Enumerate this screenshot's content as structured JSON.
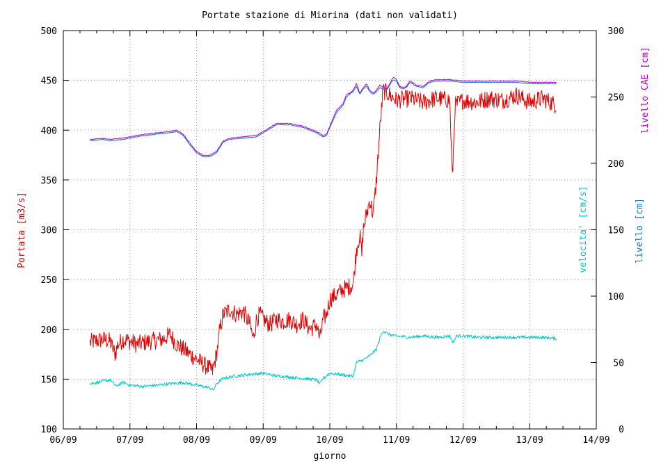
{
  "chart_data": {
    "type": "line",
    "title": "Portate stazione di Miorina (dati non validati)",
    "xlabel": "giorno",
    "x_ticks": [
      "06/09",
      "07/09",
      "08/09",
      "09/09",
      "10/09",
      "11/09",
      "12/09",
      "13/09",
      "14/09"
    ],
    "xlim": [
      0,
      8
    ],
    "left_axis": {
      "label": "Portata [m3/s]",
      "color": "#e00000",
      "ylim": [
        100,
        500
      ],
      "ticks": [
        100,
        150,
        200,
        250,
        300,
        350,
        400,
        450,
        500
      ]
    },
    "right_axis": {
      "ylim": [
        0,
        300
      ],
      "ticks": [
        0,
        50,
        100,
        150,
        200,
        250,
        300
      ],
      "labels": [
        {
          "text": "livello CAE [cm]",
          "color": "#b000d0"
        },
        {
          "text": "velocita' [cm/s]",
          "color": "#00c8c8"
        },
        {
          "text": "livello [cm]",
          "color": "#1070d0"
        }
      ]
    },
    "grid": true,
    "series": [
      {
        "axis": "left",
        "color": "#e00000",
        "noise": 9,
        "x": [
          0.4,
          0.6,
          0.7,
          0.78,
          0.82,
          0.9,
          1.0,
          1.1,
          1.3,
          1.5,
          1.6,
          1.7,
          1.8,
          1.9,
          2.0,
          2.1,
          2.2,
          2.24,
          2.3,
          2.35,
          2.4,
          2.5,
          2.6,
          2.7,
          2.8,
          2.85,
          2.9,
          2.95,
          3.0,
          3.1,
          3.2,
          3.3,
          3.4,
          3.5,
          3.6,
          3.7,
          3.8,
          3.85,
          3.9,
          3.95,
          4.0,
          4.1,
          4.2,
          4.35,
          4.4,
          4.45,
          4.48,
          4.5,
          4.6,
          4.65,
          4.7,
          4.75,
          4.8,
          4.9,
          5.0,
          5.2,
          5.4,
          5.6,
          5.8,
          5.84,
          5.88,
          6.0,
          6.2,
          6.4,
          6.6,
          6.8,
          7.0,
          7.2,
          7.4
        ],
        "y": [
          187,
          190,
          188,
          175,
          185,
          190,
          188,
          185,
          188,
          190,
          195,
          185,
          180,
          175,
          170,
          165,
          160,
          158,
          175,
          200,
          215,
          220,
          215,
          218,
          205,
          190,
          210,
          215,
          210,
          205,
          210,
          208,
          210,
          205,
          210,
          200,
          205,
          190,
          210,
          215,
          230,
          235,
          240,
          245,
          280,
          295,
          275,
          300,
          330,
          315,
          350,
          400,
          440,
          435,
          430,
          432,
          428,
          432,
          430,
          350,
          425,
          430,
          428,
          432,
          430,
          435,
          428,
          432,
          425
        ]
      },
      {
        "axis": "right",
        "color": "#00c8c8",
        "noise": 1.2,
        "x": [
          0.4,
          0.6,
          0.7,
          0.8,
          0.85,
          0.9,
          1.0,
          1.2,
          1.4,
          1.6,
          1.8,
          2.0,
          2.2,
          2.25,
          2.3,
          2.4,
          2.6,
          2.8,
          3.0,
          3.2,
          3.4,
          3.6,
          3.8,
          3.85,
          3.9,
          4.0,
          4.3,
          4.35,
          4.4,
          4.5,
          4.6,
          4.7,
          4.75,
          4.8,
          4.9,
          5.0,
          5.2,
          5.4,
          5.6,
          5.8,
          5.85,
          5.9,
          6.0,
          6.2,
          6.4,
          6.6,
          6.8,
          7.0,
          7.2,
          7.4
        ],
        "y": [
          34,
          36,
          37,
          32,
          34,
          35,
          33,
          32,
          33,
          34,
          35,
          33,
          31,
          29,
          34,
          38,
          40,
          41,
          42,
          40,
          39,
          38,
          37,
          34,
          38,
          42,
          40,
          40,
          50,
          52,
          55,
          60,
          68,
          74,
          71,
          70,
          69,
          70,
          69,
          70,
          65,
          70,
          70,
          69,
          69,
          69,
          69,
          69,
          69,
          68
        ]
      },
      {
        "axis": "right",
        "color": "#b000d0",
        "noise": 0.3,
        "x": [
          0.4,
          0.6,
          0.7,
          0.9,
          1.1,
          1.4,
          1.6,
          1.7,
          1.8,
          1.9,
          2.0,
          2.1,
          2.2,
          2.3,
          2.4,
          2.5,
          2.7,
          2.9,
          3.0,
          3.1,
          3.2,
          3.4,
          3.6,
          3.8,
          3.9,
          3.95,
          4.0,
          4.1,
          4.2,
          4.25,
          4.3,
          4.35,
          4.4,
          4.45,
          4.5,
          4.55,
          4.6,
          4.65,
          4.7,
          4.75,
          4.8,
          4.85,
          4.9,
          4.95,
          5.0,
          5.05,
          5.1,
          5.15,
          5.2,
          5.3,
          5.4,
          5.5,
          5.6,
          5.8,
          6.0,
          6.2,
          6.4,
          6.6,
          6.8,
          7.0,
          7.2,
          7.4
        ],
        "y": [
          218,
          219,
          218,
          219,
          221,
          223,
          224,
          225,
          222,
          215,
          209,
          206,
          206,
          209,
          217,
          219,
          220,
          221,
          224,
          227,
          230,
          230,
          228,
          224,
          221,
          222,
          228,
          240,
          245,
          252,
          253,
          255,
          260,
          253,
          257,
          260,
          255,
          253,
          255,
          259,
          257,
          256,
          260,
          265,
          263,
          258,
          257,
          258,
          262,
          259,
          258,
          262,
          263,
          263,
          262,
          262,
          262,
          262,
          262,
          261,
          261,
          261
        ]
      },
      {
        "axis": "right",
        "color": "#1070d0",
        "noise": 0.2,
        "x": [
          0.4,
          0.6,
          0.7,
          0.9,
          1.1,
          1.4,
          1.6,
          1.7,
          1.8,
          1.9,
          2.0,
          2.1,
          2.2,
          2.3,
          2.4,
          2.5,
          2.7,
          2.9,
          3.0,
          3.1,
          3.2,
          3.4,
          3.6,
          3.8,
          3.9,
          3.95,
          4.0,
          4.1,
          4.2,
          4.25,
          4.3,
          4.35,
          4.4,
          4.45,
          4.5,
          4.55,
          4.6,
          4.65,
          4.7,
          4.75,
          4.8,
          4.85,
          4.9,
          4.95,
          5.0,
          5.05,
          5.1,
          5.15,
          5.2,
          5.3,
          5.4,
          5.5,
          5.6,
          5.8,
          6.0,
          6.2,
          6.4,
          6.6,
          6.8,
          7.0,
          7.2,
          7.4
        ],
        "y": [
          217,
          218,
          217,
          218,
          220,
          222,
          223,
          224,
          221,
          214,
          208,
          205,
          205,
          208,
          216,
          218,
          219,
          220,
          223,
          226,
          229,
          229,
          227,
          223,
          220,
          221,
          227,
          238,
          244,
          250,
          252,
          254,
          258,
          252,
          256,
          258,
          254,
          252,
          254,
          257,
          256,
          255,
          259,
          263,
          262,
          257,
          256,
          257,
          261,
          258,
          257,
          261,
          262,
          262,
          261,
          261,
          261,
          261,
          261,
          260,
          260,
          260
        ]
      }
    ]
  }
}
